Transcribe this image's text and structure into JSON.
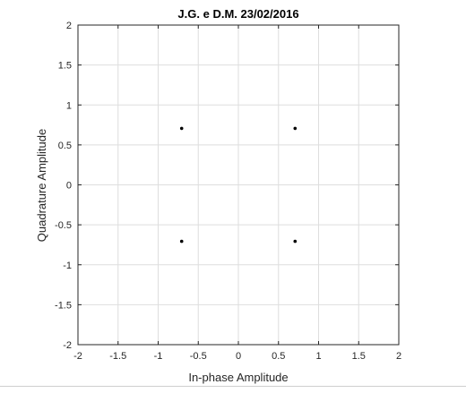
{
  "chart_data": {
    "type": "scatter",
    "title": "J.G. e D.M. 23/02/2016",
    "xlabel": "In-phase Amplitude",
    "ylabel": "Quadrature Amplitude",
    "xlim": [
      -2,
      2
    ],
    "ylim": [
      -2,
      2
    ],
    "xticks": [
      -2,
      -1.5,
      -1,
      -0.5,
      0,
      0.5,
      1,
      1.5,
      2
    ],
    "yticks": [
      -2,
      -1.5,
      -1,
      -0.5,
      0,
      0.5,
      1,
      1.5,
      2
    ],
    "xtick_labels": [
      "-2",
      "-1.5",
      "-1",
      "-0.5",
      "0",
      "0.5",
      "1",
      "1.5",
      "2"
    ],
    "ytick_labels": [
      "-2",
      "-1.5",
      "-1",
      "-0.5",
      "0",
      "0.5",
      "1",
      "1.5",
      "2"
    ],
    "grid": true,
    "marker_color": "#000000",
    "grid_color": "#dedede",
    "axis_color": "#262626",
    "points": [
      {
        "x": -0.707,
        "y": 0.707
      },
      {
        "x": 0.707,
        "y": 0.707
      },
      {
        "x": -0.707,
        "y": -0.707
      },
      {
        "x": 0.707,
        "y": -0.707
      }
    ]
  }
}
